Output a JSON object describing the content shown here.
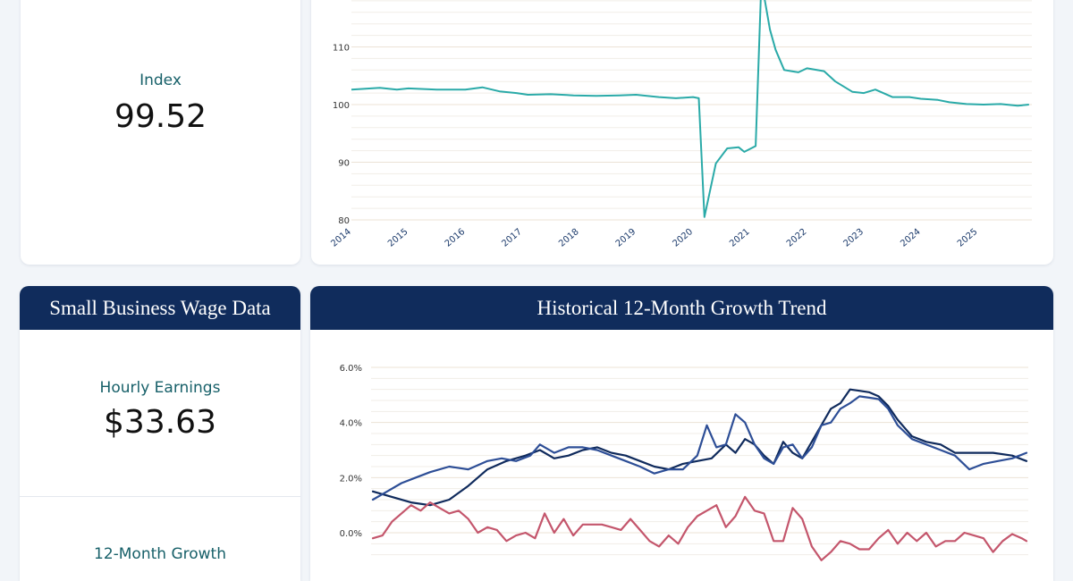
{
  "index_card": {
    "label": "Index",
    "value": "99.52"
  },
  "wage_card": {
    "title": "Small Business Wage Data",
    "hourly_label": "Hourly Earnings",
    "hourly_value": "$33.63",
    "growth_label": "12-Month Growth"
  },
  "growth_card": {
    "title": "Historical 12-Month Growth Trend"
  },
  "colors": {
    "index_line": "#2aaaa8",
    "series_navy": "#0f2a5c",
    "series_blue": "#2d4e96",
    "series_red": "#c4566c"
  },
  "chart_data": [
    {
      "type": "line",
      "title": "",
      "xlabel": "",
      "ylabel": "",
      "x_ticks": [
        "2014",
        "2015",
        "2016",
        "2017",
        "2018",
        "2019",
        "2020",
        "2021",
        "2022",
        "2023",
        "2024",
        "2025"
      ],
      "y_ticks": [
        "80",
        "90",
        "100",
        "110"
      ],
      "ylim": [
        80,
        122
      ],
      "grid": true,
      "series": [
        {
          "points": [
            [
              2014.0,
              102.6
            ],
            [
              2014.5,
              102.9
            ],
            [
              2014.8,
              102.6
            ],
            [
              2015.0,
              102.8
            ],
            [
              2015.5,
              102.6
            ],
            [
              2016.0,
              102.6
            ],
            [
              2016.3,
              103.0
            ],
            [
              2016.6,
              102.3
            ],
            [
              2016.9,
              102.0
            ],
            [
              2017.1,
              101.7
            ],
            [
              2017.5,
              101.8
            ],
            [
              2017.9,
              101.6
            ],
            [
              2018.3,
              101.5
            ],
            [
              2018.7,
              101.6
            ],
            [
              2019.0,
              101.7
            ],
            [
              2019.4,
              101.3
            ],
            [
              2019.7,
              101.1
            ],
            [
              2020.0,
              101.3
            ],
            [
              2020.1,
              101.1
            ],
            [
              2020.2,
              80.5
            ],
            [
              2020.4,
              89.8
            ],
            [
              2020.6,
              92.4
            ],
            [
              2020.8,
              92.6
            ],
            [
              2020.9,
              91.8
            ],
            [
              2021.1,
              92.8
            ],
            [
              2021.2,
              121.5
            ],
            [
              2021.35,
              113.0
            ],
            [
              2021.45,
              109.5
            ],
            [
              2021.6,
              106.0
            ],
            [
              2021.85,
              105.6
            ],
            [
              2022.0,
              106.3
            ],
            [
              2022.3,
              105.8
            ],
            [
              2022.5,
              104.0
            ],
            [
              2022.8,
              102.2
            ],
            [
              2023.0,
              102.0
            ],
            [
              2023.2,
              102.6
            ],
            [
              2023.5,
              101.3
            ],
            [
              2023.8,
              101.3
            ],
            [
              2024.0,
              101.0
            ],
            [
              2024.3,
              100.8
            ],
            [
              2024.5,
              100.4
            ],
            [
              2024.8,
              100.1
            ],
            [
              2025.1,
              100.0
            ],
            [
              2025.4,
              100.1
            ],
            [
              2025.7,
              99.8
            ],
            [
              2025.9,
              100.0
            ]
          ]
        }
      ]
    },
    {
      "type": "line",
      "title": "",
      "xlabel": "",
      "ylabel": "",
      "y_ticks": [
        "0.0%",
        "2.0%",
        "4.0%",
        "6.0%"
      ],
      "ylim": [
        -1.0,
        6.0
      ],
      "grid": true,
      "series": [
        {
          "color_key": "series_navy",
          "points": [
            [
              0,
              1.5
            ],
            [
              4,
              1.3
            ],
            [
              8,
              1.1
            ],
            [
              12,
              1.0
            ],
            [
              16,
              1.2
            ],
            [
              20,
              1.7
            ],
            [
              24,
              2.3
            ],
            [
              28,
              2.6
            ],
            [
              32,
              2.8
            ],
            [
              35,
              3.0
            ],
            [
              38,
              2.7
            ],
            [
              41,
              2.8
            ],
            [
              44,
              3.0
            ],
            [
              47,
              3.1
            ],
            [
              50,
              2.9
            ],
            [
              53,
              2.8
            ],
            [
              56,
              2.6
            ],
            [
              59,
              2.4
            ],
            [
              62,
              2.3
            ],
            [
              65,
              2.5
            ],
            [
              68,
              2.6
            ],
            [
              71,
              2.7
            ],
            [
              74,
              3.2
            ],
            [
              76,
              2.9
            ],
            [
              78,
              3.4
            ],
            [
              80,
              3.2
            ],
            [
              82,
              2.8
            ],
            [
              84,
              2.5
            ],
            [
              86,
              3.3
            ],
            [
              88,
              2.9
            ],
            [
              90,
              2.7
            ],
            [
              93,
              3.6
            ],
            [
              96,
              4.5
            ],
            [
              98,
              4.7
            ],
            [
              100,
              5.2
            ],
            [
              102,
              5.15
            ],
            [
              104,
              5.1
            ],
            [
              106,
              4.95
            ],
            [
              108,
              4.6
            ],
            [
              110,
              4.1
            ],
            [
              113,
              3.5
            ],
            [
              116,
              3.3
            ],
            [
              119,
              3.2
            ],
            [
              122,
              2.9
            ],
            [
              126,
              2.9
            ],
            [
              130,
              2.9
            ],
            [
              134,
              2.8
            ],
            [
              137,
              2.6
            ]
          ]
        },
        {
          "color_key": "series_blue",
          "points": [
            [
              0,
              1.2
            ],
            [
              3,
              1.5
            ],
            [
              6,
              1.8
            ],
            [
              9,
              2.0
            ],
            [
              12,
              2.2
            ],
            [
              16,
              2.4
            ],
            [
              20,
              2.3
            ],
            [
              24,
              2.6
            ],
            [
              27,
              2.7
            ],
            [
              30,
              2.6
            ],
            [
              33,
              2.8
            ],
            [
              35,
              3.2
            ],
            [
              38,
              2.9
            ],
            [
              41,
              3.1
            ],
            [
              44,
              3.1
            ],
            [
              47,
              3.0
            ],
            [
              50,
              2.8
            ],
            [
              53,
              2.6
            ],
            [
              56,
              2.4
            ],
            [
              59,
              2.15
            ],
            [
              62,
              2.3
            ],
            [
              65,
              2.3
            ],
            [
              68,
              2.8
            ],
            [
              70,
              3.9
            ],
            [
              72,
              3.1
            ],
            [
              74,
              3.2
            ],
            [
              76,
              4.3
            ],
            [
              78,
              4.0
            ],
            [
              80,
              3.2
            ],
            [
              82,
              2.7
            ],
            [
              84,
              2.5
            ],
            [
              86,
              3.1
            ],
            [
              88,
              3.2
            ],
            [
              90,
              2.7
            ],
            [
              92,
              3.1
            ],
            [
              94,
              3.9
            ],
            [
              96,
              4.0
            ],
            [
              98,
              4.5
            ],
            [
              100,
              4.7
            ],
            [
              102,
              4.95
            ],
            [
              104,
              4.9
            ],
            [
              106,
              4.85
            ],
            [
              108,
              4.5
            ],
            [
              110,
              3.9
            ],
            [
              113,
              3.4
            ],
            [
              116,
              3.2
            ],
            [
              119,
              3.0
            ],
            [
              122,
              2.8
            ],
            [
              125,
              2.3
            ],
            [
              128,
              2.5
            ],
            [
              131,
              2.6
            ],
            [
              134,
              2.7
            ],
            [
              137,
              2.9
            ]
          ]
        },
        {
          "color_key": "series_red",
          "points": [
            [
              0,
              -0.2
            ],
            [
              2,
              -0.1
            ],
            [
              4,
              0.4
            ],
            [
              6,
              0.7
            ],
            [
              8,
              1.0
            ],
            [
              10,
              0.8
            ],
            [
              12,
              1.1
            ],
            [
              14,
              0.9
            ],
            [
              16,
              0.7
            ],
            [
              18,
              0.8
            ],
            [
              20,
              0.5
            ],
            [
              22,
              0.0
            ],
            [
              24,
              0.2
            ],
            [
              26,
              0.1
            ],
            [
              28,
              -0.3
            ],
            [
              30,
              -0.1
            ],
            [
              32,
              0.0
            ],
            [
              34,
              -0.2
            ],
            [
              36,
              0.7
            ],
            [
              38,
              0.0
            ],
            [
              40,
              0.5
            ],
            [
              42,
              -0.1
            ],
            [
              44,
              0.3
            ],
            [
              46,
              0.3
            ],
            [
              48,
              0.3
            ],
            [
              50,
              0.2
            ],
            [
              52,
              0.1
            ],
            [
              54,
              0.5
            ],
            [
              56,
              0.1
            ],
            [
              58,
              -0.3
            ],
            [
              60,
              -0.5
            ],
            [
              62,
              -0.1
            ],
            [
              64,
              -0.4
            ],
            [
              66,
              0.2
            ],
            [
              68,
              0.6
            ],
            [
              70,
              0.8
            ],
            [
              72,
              1.0
            ],
            [
              74,
              0.2
            ],
            [
              76,
              0.6
            ],
            [
              78,
              1.3
            ],
            [
              80,
              0.8
            ],
            [
              82,
              0.7
            ],
            [
              84,
              -0.3
            ],
            [
              86,
              -0.3
            ],
            [
              88,
              0.9
            ],
            [
              90,
              0.5
            ],
            [
              92,
              -0.5
            ],
            [
              94,
              -1.0
            ],
            [
              96,
              -0.7
            ],
            [
              98,
              -0.3
            ],
            [
              100,
              -0.4
            ],
            [
              102,
              -0.6
            ],
            [
              104,
              -0.6
            ],
            [
              106,
              -0.2
            ],
            [
              108,
              0.1
            ],
            [
              110,
              -0.4
            ],
            [
              112,
              0.0
            ],
            [
              114,
              -0.3
            ],
            [
              116,
              0.0
            ],
            [
              118,
              -0.5
            ],
            [
              120,
              -0.3
            ],
            [
              122,
              -0.3
            ],
            [
              124,
              0.0
            ],
            [
              126,
              -0.1
            ],
            [
              128,
              -0.2
            ],
            [
              130,
              -0.7
            ],
            [
              132,
              -0.3
            ],
            [
              134,
              -0.05
            ],
            [
              136,
              -0.2
            ],
            [
              137,
              -0.3
            ]
          ]
        }
      ]
    }
  ]
}
